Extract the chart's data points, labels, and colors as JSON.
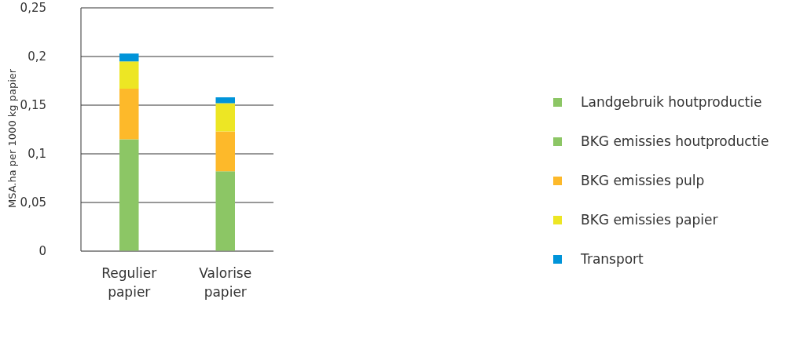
{
  "chart_data": {
    "type": "bar",
    "stacked": true,
    "ylabel": "MSA.ha per 1000 kg papier",
    "categories": [
      "Regulier papier",
      "Valorise papier"
    ],
    "series": [
      {
        "name": "Landgebruik houtproductie",
        "color": "#8cc665",
        "values": [
          null,
          null
        ]
      },
      {
        "name": "BKG emissies houtproductie",
        "color": "#8cc665",
        "values": [
          0.115,
          0.082
        ]
      },
      {
        "name": "BKG emissies pulp",
        "color": "#fdb92a",
        "values": [
          0.052,
          0.041
        ]
      },
      {
        "name": "BKG emissies papier",
        "color": "#ede624",
        "values": [
          0.028,
          0.029
        ]
      },
      {
        "name": "Transport",
        "color": "#0094d9",
        "values": [
          0.008,
          0.006
        ]
      }
    ],
    "ylim": [
      0,
      0.25
    ],
    "yticks": [
      {
        "value": 0,
        "label": "0"
      },
      {
        "value": 0.05,
        "label": "0,05"
      },
      {
        "value": 0.1,
        "label": "0,1"
      },
      {
        "value": 0.15,
        "label": "0,15"
      },
      {
        "value": 0.2,
        "label": "0,2"
      },
      {
        "value": 0.25,
        "label": "0,25"
      }
    ],
    "grid": "y",
    "legend": "right"
  }
}
